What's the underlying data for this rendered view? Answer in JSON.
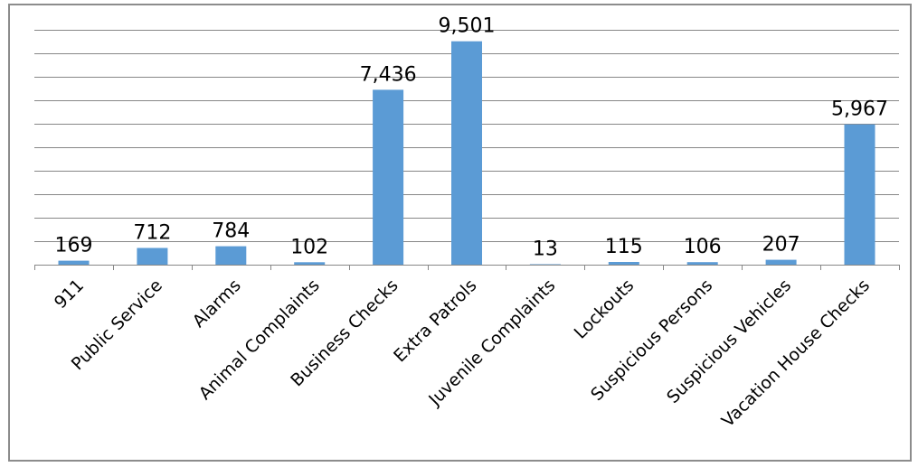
{
  "colors": {
    "bar": "#5b9bd5",
    "grid": "#878787",
    "border": "#8c8c8c"
  },
  "chart_data": {
    "type": "bar",
    "title": "",
    "xlabel": "",
    "ylabel": "",
    "ylim": [
      0,
      10000
    ],
    "gridlines": true,
    "legend": "none",
    "categories": [
      "911",
      "Public Service",
      "Alarms",
      "Animal Complaints",
      "Business Checks",
      "Extra Patrols",
      "Juvenile Complaints",
      "Lockouts",
      "Suspicious Persons",
      "Suspicious Vehicles",
      "Vacation House Checks"
    ],
    "values": [
      169,
      712,
      784,
      102,
      7436,
      9501,
      13,
      115,
      106,
      207,
      5967
    ],
    "data_labels": [
      "169",
      "712",
      "784",
      "102",
      "7,436",
      "9,501",
      "13",
      "115",
      "106",
      "207",
      "5,967"
    ]
  }
}
